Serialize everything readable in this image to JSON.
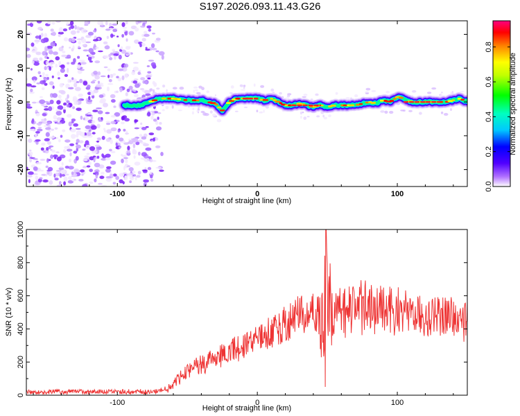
{
  "title": "S197.2026.093.11.43.G26",
  "chart_data": [
    {
      "type": "heatmap",
      "xlabel": "Height of straight line (km)",
      "ylabel": "Frequency (Hz)",
      "xlim": [
        -165,
        150
      ],
      "ylim": [
        -25,
        24
      ],
      "xticks": [
        -100,
        0,
        100
      ],
      "yticks": [
        -20,
        -10,
        0,
        10,
        20
      ],
      "noise_region_x": [
        -165,
        -70
      ],
      "signal_start_x": -95,
      "ridge": {
        "x": [
          -95,
          -83,
          -70,
          -60,
          -50,
          -40,
          -30,
          -25,
          -20,
          -15,
          -10,
          0,
          5,
          10,
          15,
          20,
          25,
          30,
          35,
          40,
          45,
          50,
          55,
          60,
          65,
          70,
          75,
          80,
          85,
          90,
          95,
          100,
          105,
          110,
          115,
          120,
          125,
          130,
          135,
          140,
          145,
          150
        ],
        "y": [
          -1,
          -1,
          1,
          1,
          0.5,
          0.5,
          -0.5,
          -2.5,
          0,
          1,
          1,
          1,
          0.5,
          1,
          0,
          -1,
          -1,
          -0.5,
          -1,
          -1.5,
          -1,
          -1.5,
          -1,
          -1,
          -1,
          -1,
          -0.5,
          0,
          -0.5,
          0.5,
          0,
          1.5,
          1,
          0,
          0,
          0,
          0,
          0,
          0,
          0.5,
          1,
          0
        ]
      },
      "colorbar": {
        "label": "Normalized spectral amplitude",
        "ticks": [
          0.0,
          0.2,
          0.4,
          0.6,
          0.8
        ],
        "range": [
          0,
          0.95
        ],
        "colors": [
          "#ffffff",
          "#8000ff",
          "#0000ff",
          "#00ffff",
          "#00ff00",
          "#ffff00",
          "#ff8000",
          "#ff0000",
          "#ff0080"
        ]
      }
    },
    {
      "type": "line",
      "xlabel": "Height of straight line (km)",
      "ylabel": "SNR (10 * v/v)",
      "xlim": [
        -165,
        150
      ],
      "ylim": [
        0,
        1000
      ],
      "xticks": [
        -100,
        0,
        100
      ],
      "yticks": [
        0,
        200,
        400,
        600,
        800,
        1000
      ],
      "color": "#ee3333",
      "trend": {
        "x": [
          -165,
          -110,
          -75,
          -62,
          -55,
          -45,
          -30,
          -15,
          0,
          10,
          20,
          30,
          40,
          45,
          48,
          60,
          80,
          100,
          120,
          150
        ],
        "y": [
          20,
          20,
          20,
          45,
          110,
          165,
          220,
          280,
          330,
          380,
          430,
          480,
          500,
          480,
          460,
          520,
          530,
          520,
          480,
          470
        ]
      },
      "spike_x": 49,
      "spike_max": 1000,
      "spike_min": 50
    }
  ]
}
